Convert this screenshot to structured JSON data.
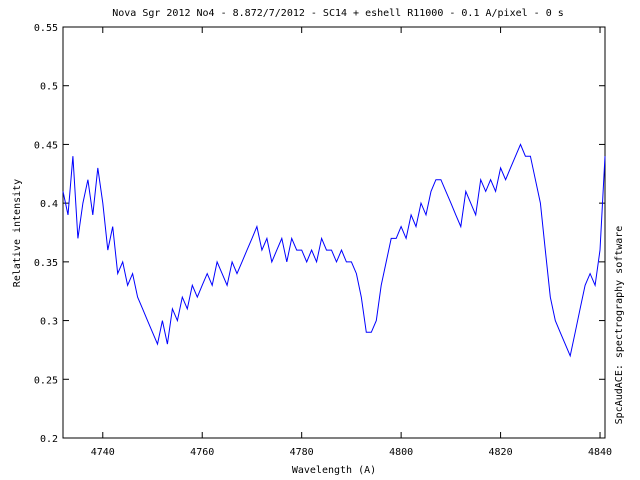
{
  "chart_data": {
    "type": "line",
    "title": "Nova Sgr 2012 No4 - 8.872/7/2012 - SC14 + eshell R11000 - 0.1 A/pixel - 0 s",
    "xlabel": "Wavelength (A)",
    "ylabel": "Relative intensity",
    "side_label": "SpcAudACE: spectrography software",
    "xlim": [
      4732,
      4841
    ],
    "ylim": [
      0.2,
      0.55
    ],
    "xticks": [
      4740,
      4760,
      4780,
      4800,
      4820,
      4840
    ],
    "yticks": [
      0.2,
      0.25,
      0.3,
      0.35,
      0.4,
      0.45,
      0.5,
      0.55
    ],
    "grid": false,
    "line_color": "#0000ff",
    "series": [
      {
        "x": [
          4732,
          4733,
          4734,
          4735,
          4736,
          4737,
          4738,
          4739,
          4740,
          4741,
          4742,
          4743,
          4744,
          4745,
          4746,
          4747,
          4748,
          4749,
          4750,
          4751,
          4752,
          4753,
          4754,
          4755,
          4756,
          4757,
          4758,
          4759,
          4760,
          4761,
          4762,
          4763,
          4764,
          4765,
          4766,
          4767,
          4768,
          4769,
          4770,
          4771,
          4772,
          4773,
          4774,
          4775,
          4776,
          4777,
          4778,
          4779,
          4780,
          4781,
          4782,
          4783,
          4784,
          4785,
          4786,
          4787,
          4788,
          4789,
          4790,
          4791,
          4792,
          4793,
          4794,
          4795,
          4796,
          4797,
          4798,
          4799,
          4800,
          4801,
          4802,
          4803,
          4804,
          4805,
          4806,
          4807,
          4808,
          4809,
          4810,
          4811,
          4812,
          4813,
          4814,
          4815,
          4816,
          4817,
          4818,
          4819,
          4820,
          4821,
          4822,
          4823,
          4824,
          4825,
          4826,
          4827,
          4828,
          4829,
          4830,
          4831,
          4832,
          4833,
          4834,
          4835,
          4836,
          4837,
          4838,
          4839,
          4840,
          4841
        ],
        "values": [
          0.41,
          0.39,
          0.44,
          0.37,
          0.4,
          0.42,
          0.39,
          0.43,
          0.4,
          0.36,
          0.38,
          0.34,
          0.35,
          0.33,
          0.34,
          0.32,
          0.31,
          0.3,
          0.29,
          0.28,
          0.3,
          0.28,
          0.31,
          0.3,
          0.32,
          0.31,
          0.33,
          0.32,
          0.33,
          0.34,
          0.33,
          0.35,
          0.34,
          0.33,
          0.35,
          0.34,
          0.35,
          0.36,
          0.37,
          0.38,
          0.36,
          0.37,
          0.35,
          0.36,
          0.37,
          0.35,
          0.37,
          0.36,
          0.36,
          0.35,
          0.36,
          0.35,
          0.37,
          0.36,
          0.36,
          0.35,
          0.36,
          0.35,
          0.35,
          0.34,
          0.32,
          0.29,
          0.29,
          0.3,
          0.33,
          0.35,
          0.37,
          0.37,
          0.38,
          0.37,
          0.39,
          0.38,
          0.4,
          0.39,
          0.41,
          0.42,
          0.42,
          0.41,
          0.4,
          0.39,
          0.38,
          0.41,
          0.4,
          0.39,
          0.42,
          0.41,
          0.42,
          0.41,
          0.43,
          0.42,
          0.43,
          0.44,
          0.45,
          0.44,
          0.44,
          0.42,
          0.4,
          0.36,
          0.32,
          0.3,
          0.29,
          0.28,
          0.27,
          0.29,
          0.31,
          0.33,
          0.34,
          0.33,
          0.36,
          0.44
        ]
      }
    ]
  }
}
